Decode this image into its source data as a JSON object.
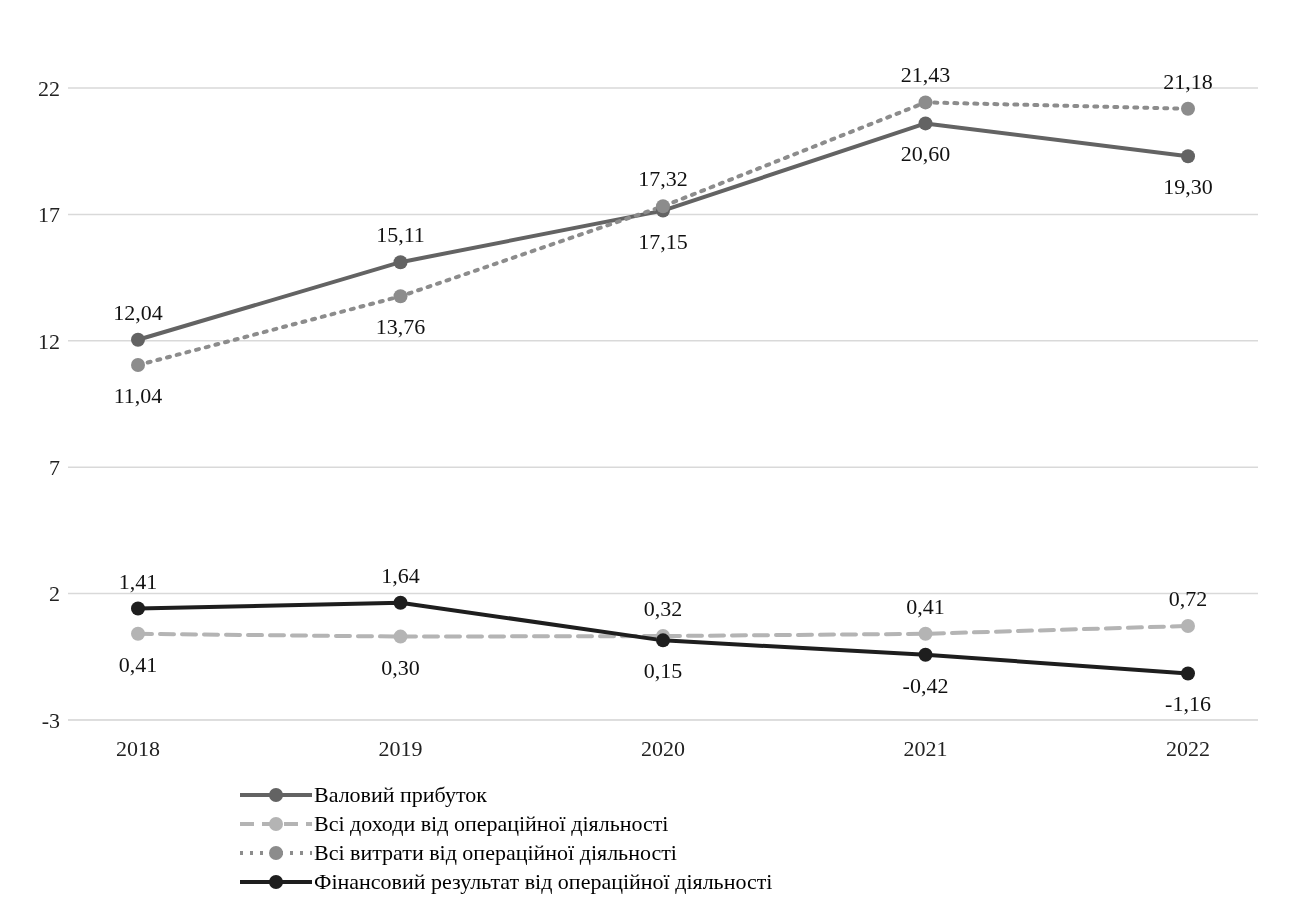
{
  "chart_data": {
    "type": "line",
    "categories": [
      "2018",
      "2019",
      "2020",
      "2021",
      "2022"
    ],
    "series": [
      {
        "name": "Валовий прибуток",
        "color": "#636363",
        "line_style": "solid",
        "values": [
          12.04,
          15.11,
          17.15,
          20.6,
          19.3
        ],
        "value_labels": [
          "12,04",
          "15,11",
          "17,15",
          "20,60",
          "19,30"
        ]
      },
      {
        "name": "Всі доходи від операційної діяльності",
        "color": "#b4b4b4",
        "line_style": "dashed",
        "values": [
          0.41,
          0.3,
          0.32,
          0.41,
          0.72
        ],
        "value_labels": [
          "0,41",
          "0,30",
          "0,32",
          "0,41",
          "0,72"
        ]
      },
      {
        "name": "Всі витрати від операційної діяльності",
        "color": "#8c8c8c",
        "line_style": "dotted",
        "values": [
          11.04,
          13.76,
          17.32,
          21.43,
          21.18
        ],
        "value_labels": [
          "11,04",
          "13,76",
          "17,32",
          "21,43",
          "21,18"
        ]
      },
      {
        "name": "Фінансовий результат від операційної діяльності",
        "color": "#1e1e1e",
        "line_style": "solid",
        "values": [
          1.41,
          1.64,
          0.15,
          -0.42,
          -1.16
        ],
        "value_labels": [
          "1,41",
          "1,64",
          "0,15",
          "-0,42",
          "-1,16"
        ]
      }
    ],
    "ylim": [
      -3,
      22
    ],
    "yticks": [
      -3,
      2,
      7,
      12,
      17,
      22
    ],
    "grid": "y",
    "legend": "bottom",
    "marker": "circle"
  }
}
